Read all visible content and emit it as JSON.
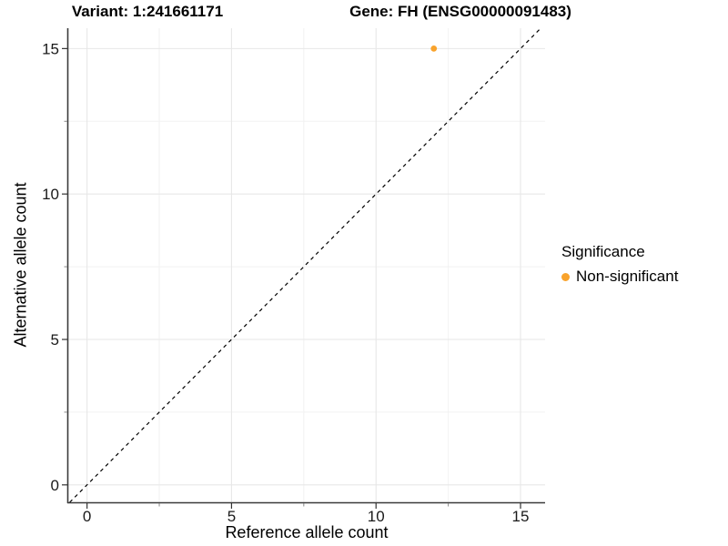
{
  "chart_data": {
    "type": "scatter",
    "title_left": "Variant: 1:241661171",
    "title_right": "Gene: FH (ENSG00000091483)",
    "xlabel": "Reference allele count",
    "ylabel": "Alternative allele count",
    "xlim": [
      -0.65,
      15.85
    ],
    "ylim": [
      -0.6,
      15.7
    ],
    "x_major_ticks": [
      0,
      5,
      10,
      15
    ],
    "x_minor_ticks": [
      2.5,
      7.5,
      12.5
    ],
    "y_major_ticks": [
      0,
      5,
      10,
      15
    ],
    "y_minor_ticks": [
      2.5,
      7.5,
      12.5
    ],
    "grid": true,
    "legend_position": "right",
    "identity_line": {
      "equation": "y = x",
      "style": "dashed",
      "color": "#000000"
    },
    "series": [
      {
        "name": "Non-significant",
        "color": "#F9A32C",
        "points": [
          {
            "x": 12,
            "y": 15
          }
        ]
      }
    ],
    "legend": {
      "title": "Significance",
      "items": [
        {
          "label": "Non-significant",
          "color": "#F9A32C"
        }
      ]
    }
  },
  "colors": {
    "background": "#FFFFFF",
    "axis_line": "#3A3A3A",
    "major_grid": "#E7E7E7",
    "minor_grid": "#F2F2F2",
    "tick_label": "#1A1A1A",
    "non_significant": "#F9A32C"
  }
}
